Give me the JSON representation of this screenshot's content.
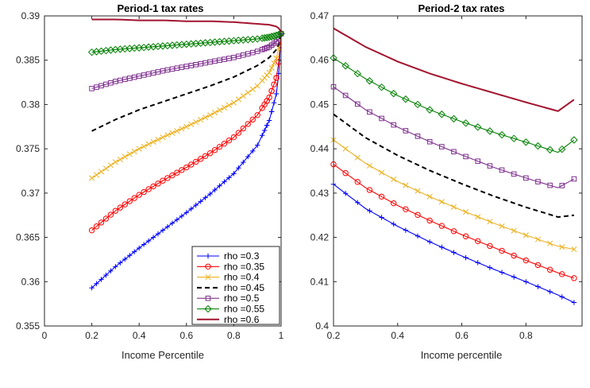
{
  "chart_data": [
    {
      "type": "line",
      "title": "Period-1 tax rates",
      "xlabel": "Income Percentile",
      "ylabel": "",
      "xlim": [
        0,
        1
      ],
      "ylim": [
        0.355,
        0.39
      ],
      "xticks": [
        0,
        0.2,
        0.4,
        0.6,
        0.8,
        1
      ],
      "xtick_labels": [
        "0",
        "0.2",
        "0.4",
        "0.6",
        "0.8",
        "1"
      ],
      "yticks": [
        0.355,
        0.36,
        0.365,
        0.37,
        0.375,
        0.38,
        0.385,
        0.39
      ],
      "ytick_labels": [
        "0.355",
        "0.36",
        "0.365",
        "0.37",
        "0.375",
        "0.38",
        "0.385",
        "0.39"
      ],
      "grid": false,
      "legend": "bottom-right",
      "x": [
        0.2,
        0.3,
        0.4,
        0.5,
        0.6,
        0.7,
        0.8,
        0.9,
        0.95,
        0.98,
        0.99,
        1.0
      ],
      "series": [
        {
          "name": "rho =0.3",
          "color": "#0000ff",
          "style": "solid",
          "marker": "plus",
          "values": [
            0.3593,
            0.3617,
            0.3638,
            0.3658,
            0.3678,
            0.3699,
            0.3722,
            0.3754,
            0.3782,
            0.3812,
            0.3835,
            0.388
          ]
        },
        {
          "name": "rho =0.35",
          "color": "#ff0000",
          "style": "solid",
          "marker": "circle",
          "values": [
            0.3658,
            0.368,
            0.3698,
            0.3714,
            0.3729,
            0.3745,
            0.3763,
            0.3788,
            0.3808,
            0.383,
            0.3848,
            0.388
          ]
        },
        {
          "name": "rho =0.4",
          "color": "#edb120",
          "style": "solid",
          "marker": "x",
          "values": [
            0.3717,
            0.3735,
            0.375,
            0.3763,
            0.3775,
            0.3788,
            0.3802,
            0.3821,
            0.3836,
            0.3852,
            0.3864,
            0.388
          ]
        },
        {
          "name": "rho =0.45",
          "color": "#000000",
          "style": "dashed",
          "marker": "none",
          "values": [
            0.377,
            0.3783,
            0.3794,
            0.3803,
            0.3812,
            0.3821,
            0.3831,
            0.3844,
            0.3853,
            0.3862,
            0.3868,
            0.388
          ]
        },
        {
          "name": "rho =0.5",
          "color": "#7e2f8e",
          "style": "solid",
          "marker": "square",
          "values": [
            0.3818,
            0.3826,
            0.3832,
            0.3838,
            0.3843,
            0.3848,
            0.3853,
            0.386,
            0.3865,
            0.3871,
            0.3874,
            0.388
          ]
        },
        {
          "name": "rho =0.55",
          "color": "#008000",
          "style": "solid",
          "marker": "diamond",
          "values": [
            0.3859,
            0.3862,
            0.3864,
            0.3866,
            0.3868,
            0.387,
            0.3872,
            0.3874,
            0.3876,
            0.3878,
            0.3879,
            0.388
          ]
        },
        {
          "name": "rho =0.6",
          "color": "#a2142f",
          "style": "solid",
          "marker": "none",
          "values": [
            0.3896,
            0.3896,
            0.3895,
            0.3895,
            0.3894,
            0.3894,
            0.3893,
            0.3891,
            0.389,
            0.3888,
            0.3886,
            0.3882
          ]
        }
      ]
    },
    {
      "type": "line",
      "title": "Period-2 tax rates",
      "xlabel": "Income  percentile",
      "ylabel": "",
      "xlim": [
        0.2,
        0.975
      ],
      "ylim": [
        0.4,
        0.47
      ],
      "xticks": [
        0.2,
        0.4,
        0.6,
        0.8
      ],
      "xtick_labels": [
        "0.2",
        "0.4",
        "0.6",
        "0.8"
      ],
      "yticks": [
        0.4,
        0.41,
        0.42,
        0.43,
        0.44,
        0.45,
        0.46,
        0.47
      ],
      "ytick_labels": [
        "0.4",
        "0.41",
        "0.42",
        "0.43",
        "0.44",
        "0.45",
        "0.46",
        "0.47"
      ],
      "grid": false,
      "x": [
        0.2,
        0.3,
        0.4,
        0.5,
        0.6,
        0.7,
        0.8,
        0.9,
        0.95
      ],
      "series": [
        {
          "name": "rho =0.3",
          "color": "#0000ff",
          "style": "solid",
          "marker": "plus",
          "values": [
            0.432,
            0.4265,
            0.4225,
            0.419,
            0.4158,
            0.4128,
            0.41,
            0.407,
            0.4053
          ]
        },
        {
          "name": "rho =0.35",
          "color": "#ff0000",
          "style": "solid",
          "marker": "circle",
          "values": [
            0.4365,
            0.4312,
            0.4272,
            0.4238,
            0.4206,
            0.4177,
            0.4148,
            0.412,
            0.4108
          ]
        },
        {
          "name": "rho =0.4",
          "color": "#edb120",
          "style": "solid",
          "marker": "x",
          "values": [
            0.442,
            0.4367,
            0.4326,
            0.4292,
            0.4261,
            0.4232,
            0.4205,
            0.418,
            0.4173
          ]
        },
        {
          "name": "rho =0.45",
          "color": "#000000",
          "style": "dashed",
          "marker": "none",
          "values": [
            0.4478,
            0.4425,
            0.4385,
            0.4351,
            0.4321,
            0.4293,
            0.4268,
            0.4246,
            0.425
          ]
        },
        {
          "name": "rho =0.5",
          "color": "#7e2f8e",
          "style": "solid",
          "marker": "square",
          "values": [
            0.454,
            0.4488,
            0.4449,
            0.4416,
            0.4386,
            0.4358,
            0.4334,
            0.4312,
            0.4332
          ]
        },
        {
          "name": "rho =0.55",
          "color": "#008000",
          "style": "solid",
          "marker": "diamond",
          "values": [
            0.4605,
            0.4558,
            0.452,
            0.4488,
            0.4461,
            0.4437,
            0.4415,
            0.4392,
            0.442
          ]
        },
        {
          "name": "rho =0.6",
          "color": "#a2142f",
          "style": "solid",
          "marker": "none",
          "values": [
            0.4672,
            0.463,
            0.4597,
            0.457,
            0.4547,
            0.4526,
            0.4505,
            0.4485,
            0.4511
          ]
        }
      ]
    }
  ]
}
